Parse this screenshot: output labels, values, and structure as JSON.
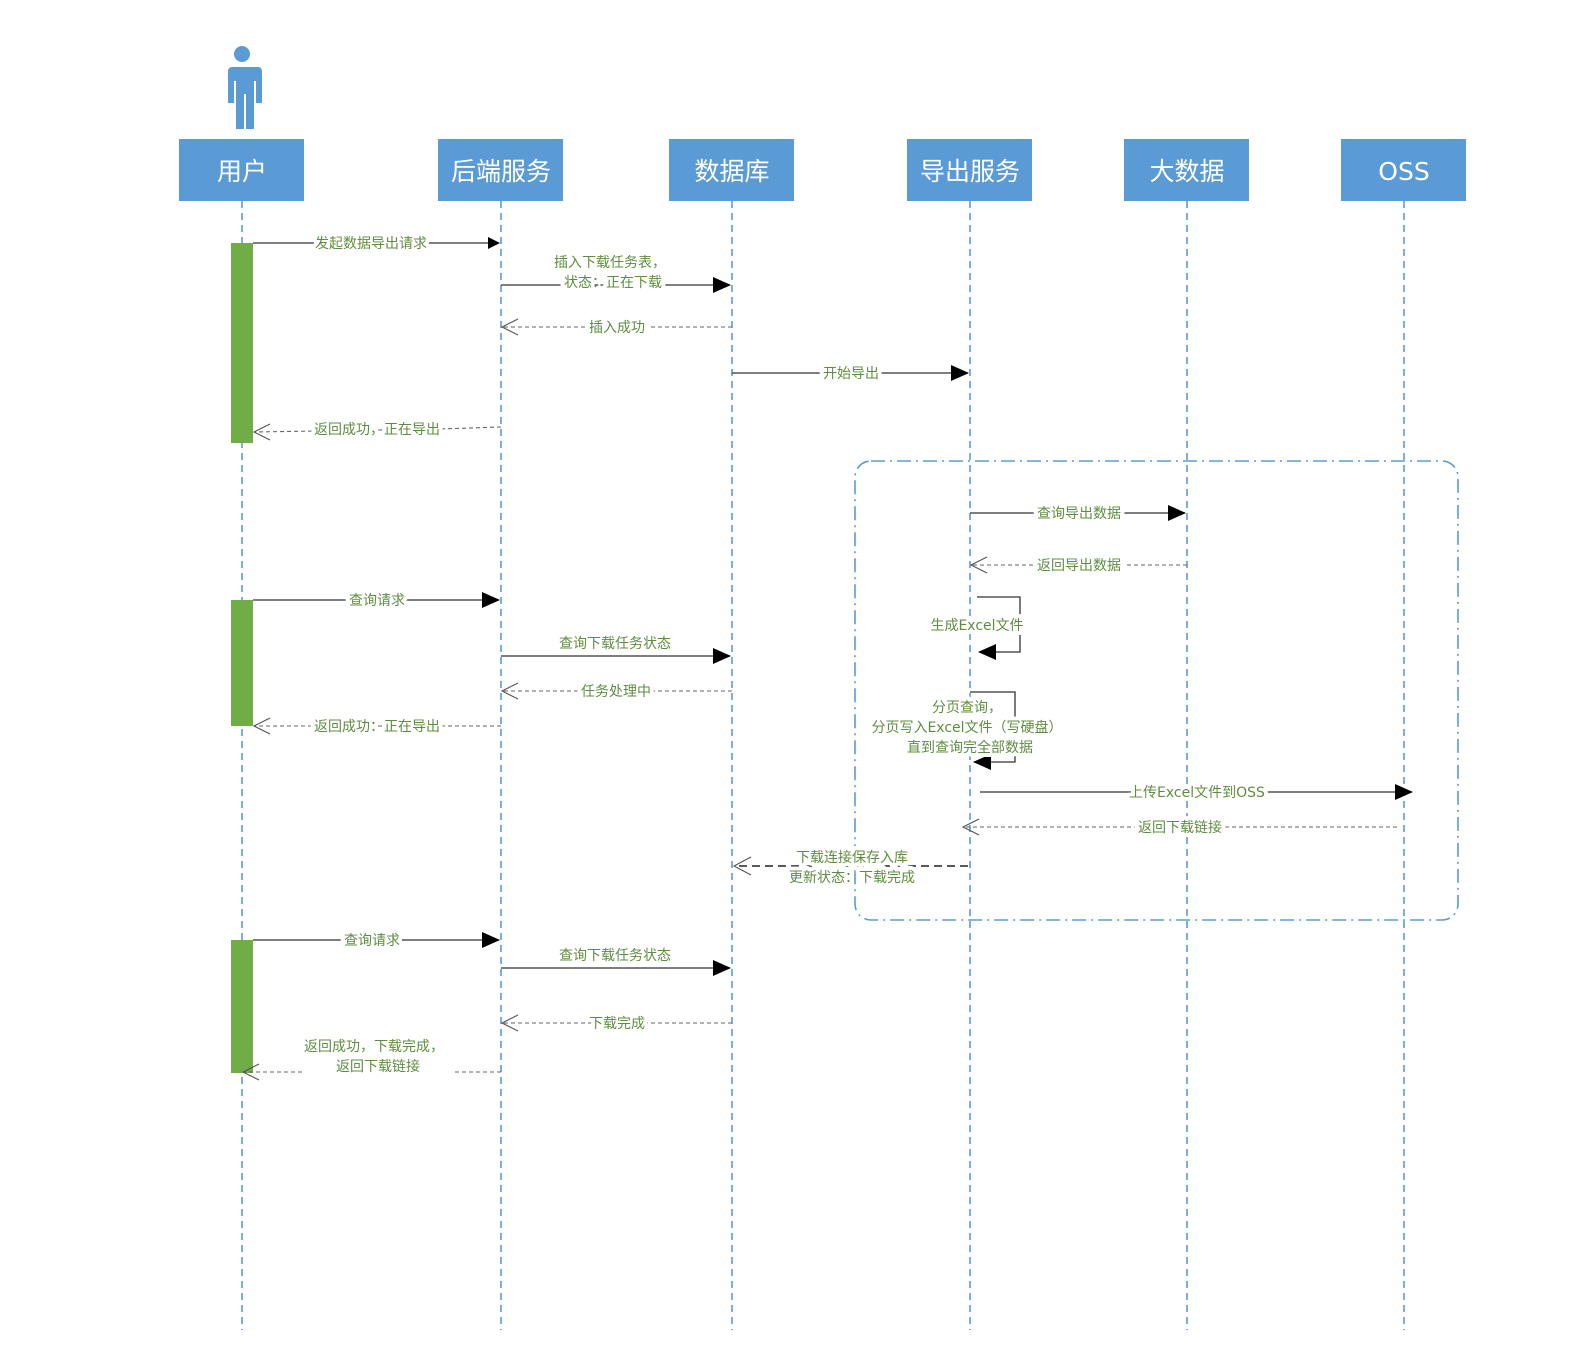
{
  "participants": [
    "用户",
    "后端服务",
    "数据库",
    "导出服务",
    "大数据",
    "OSS"
  ],
  "messages": {
    "m1": "发起数据导出请求",
    "m2a": "插入下载任务表，",
    "m2b": "状态：正在下载",
    "m3": "插入成功",
    "m4": "开始导出",
    "m5": "返回成功，正在导出",
    "m6": "查询导出数据",
    "m7": "返回导出数据",
    "m8": "生成Excel文件",
    "m9a": "分页查询，",
    "m9b": "分页写入Excel文件（写硬盘）",
    "m9c": "直到查询完全部数据",
    "m10": "上传Excel文件到OSS",
    "m11": "返回下载链接",
    "m12a": "下载连接保存入库",
    "m12b": "更新状态：下载完成",
    "m13": "查询请求",
    "m14": "查询下载任务状态",
    "m15": "任务处理中",
    "m16": "返回成功：正在导出",
    "m17": "查询请求",
    "m18": "查询下载任务状态",
    "m19": "下载完成",
    "m20a": "返回成功，下载完成，",
    "m20b": "返回下载链接"
  },
  "colors": {
    "header": "#5b9bd5",
    "activation": "#70ad47",
    "label": "#5f8d3f"
  }
}
